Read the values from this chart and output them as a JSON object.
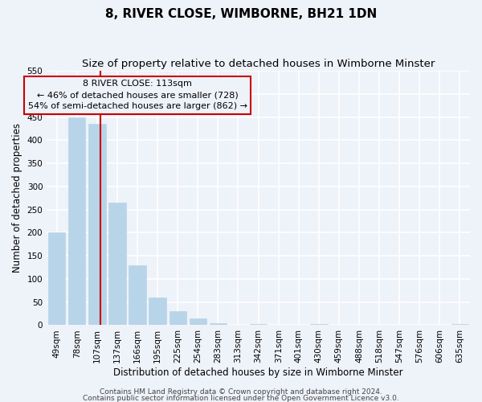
{
  "title": "8, RIVER CLOSE, WIMBORNE, BH21 1DN",
  "subtitle": "Size of property relative to detached houses in Wimborne Minster",
  "xlabel": "Distribution of detached houses by size in Wimborne Minster",
  "ylabel": "Number of detached properties",
  "bar_labels": [
    "49sqm",
    "78sqm",
    "107sqm",
    "137sqm",
    "166sqm",
    "195sqm",
    "225sqm",
    "254sqm",
    "283sqm",
    "313sqm",
    "342sqm",
    "371sqm",
    "401sqm",
    "430sqm",
    "459sqm",
    "488sqm",
    "518sqm",
    "547sqm",
    "576sqm",
    "606sqm",
    "635sqm"
  ],
  "bar_values": [
    200,
    450,
    435,
    265,
    130,
    60,
    30,
    15,
    5,
    0,
    2,
    0,
    0,
    2,
    0,
    0,
    0,
    0,
    0,
    0,
    3
  ],
  "bar_color": "#b8d4e8",
  "vline_color": "#cc0000",
  "vline_x": 2.15,
  "ylim": [
    0,
    550
  ],
  "yticks": [
    0,
    50,
    100,
    150,
    200,
    250,
    300,
    350,
    400,
    450,
    500,
    550
  ],
  "annotation_title": "8 RIVER CLOSE: 113sqm",
  "annotation_line1": "← 46% of detached houses are smaller (728)",
  "annotation_line2": "54% of semi-detached houses are larger (862) →",
  "footer_line1": "Contains HM Land Registry data © Crown copyright and database right 2024.",
  "footer_line2": "Contains public sector information licensed under the Open Government Licence v3.0.",
  "bg_color": "#eef2f9",
  "grid_color": "#ffffff",
  "title_fontsize": 11,
  "subtitle_fontsize": 9.5,
  "axis_label_fontsize": 8.5,
  "tick_fontsize": 7.5,
  "annotation_fontsize": 8,
  "footer_fontsize": 6.5
}
